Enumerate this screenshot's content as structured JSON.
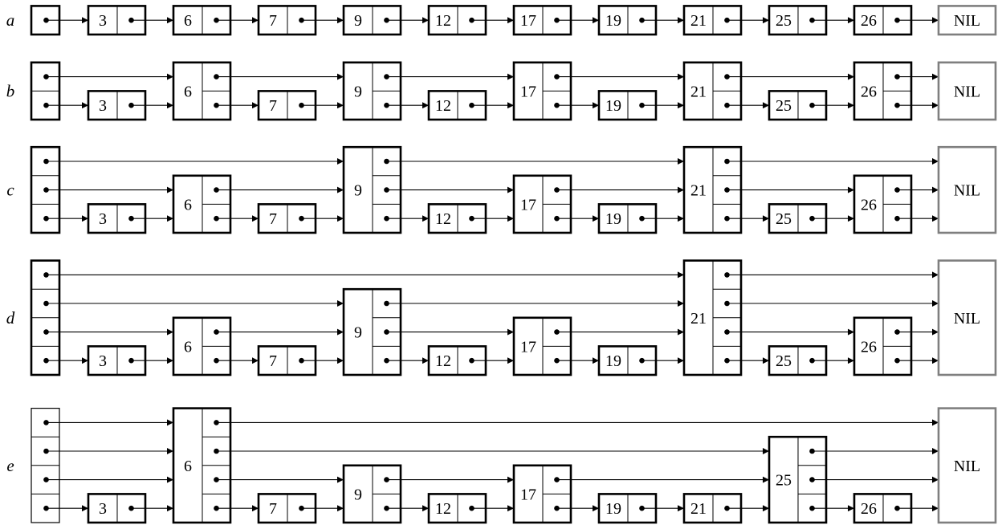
{
  "nil_label": "NIL",
  "colors": {
    "ink": "#000000",
    "nil_border": "#7f7f7f",
    "background": "#ffffff"
  },
  "lists": [
    {
      "label": "a",
      "header_levels": 1,
      "header_bold": true,
      "nodes": [
        {
          "key": "3",
          "levels": 1
        },
        {
          "key": "6",
          "levels": 1
        },
        {
          "key": "7",
          "levels": 1
        },
        {
          "key": "9",
          "levels": 1
        },
        {
          "key": "12",
          "levels": 1
        },
        {
          "key": "17",
          "levels": 1
        },
        {
          "key": "19",
          "levels": 1
        },
        {
          "key": "21",
          "levels": 1
        },
        {
          "key": "25",
          "levels": 1
        },
        {
          "key": "26",
          "levels": 1
        }
      ]
    },
    {
      "label": "b",
      "header_levels": 2,
      "header_bold": true,
      "nodes": [
        {
          "key": "3",
          "levels": 1
        },
        {
          "key": "6",
          "levels": 2
        },
        {
          "key": "7",
          "levels": 1
        },
        {
          "key": "9",
          "levels": 2
        },
        {
          "key": "12",
          "levels": 1
        },
        {
          "key": "17",
          "levels": 2
        },
        {
          "key": "19",
          "levels": 1
        },
        {
          "key": "21",
          "levels": 2
        },
        {
          "key": "25",
          "levels": 1
        },
        {
          "key": "26",
          "levels": 2
        }
      ]
    },
    {
      "label": "c",
      "header_levels": 3,
      "header_bold": true,
      "nodes": [
        {
          "key": "3",
          "levels": 1
        },
        {
          "key": "6",
          "levels": 2
        },
        {
          "key": "7",
          "levels": 1
        },
        {
          "key": "9",
          "levels": 3
        },
        {
          "key": "12",
          "levels": 1
        },
        {
          "key": "17",
          "levels": 2
        },
        {
          "key": "19",
          "levels": 1
        },
        {
          "key": "21",
          "levels": 3
        },
        {
          "key": "25",
          "levels": 1
        },
        {
          "key": "26",
          "levels": 2
        }
      ]
    },
    {
      "label": "d",
      "header_levels": 4,
      "header_bold": true,
      "nodes": [
        {
          "key": "3",
          "levels": 1
        },
        {
          "key": "6",
          "levels": 2
        },
        {
          "key": "7",
          "levels": 1
        },
        {
          "key": "9",
          "levels": 3
        },
        {
          "key": "12",
          "levels": 1
        },
        {
          "key": "17",
          "levels": 2
        },
        {
          "key": "19",
          "levels": 1
        },
        {
          "key": "21",
          "levels": 4
        },
        {
          "key": "25",
          "levels": 1
        },
        {
          "key": "26",
          "levels": 2
        }
      ]
    },
    {
      "label": "e",
      "header_levels": 4,
      "header_bold": false,
      "nodes": [
        {
          "key": "3",
          "levels": 1
        },
        {
          "key": "6",
          "levels": 4
        },
        {
          "key": "7",
          "levels": 1
        },
        {
          "key": "9",
          "levels": 2
        },
        {
          "key": "12",
          "levels": 1
        },
        {
          "key": "17",
          "levels": 2
        },
        {
          "key": "19",
          "levels": 1
        },
        {
          "key": "21",
          "levels": 1
        },
        {
          "key": "25",
          "levels": 3
        },
        {
          "key": "26",
          "levels": 1
        }
      ]
    }
  ]
}
